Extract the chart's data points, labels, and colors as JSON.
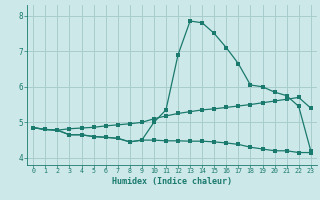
{
  "x": [
    0,
    1,
    2,
    3,
    4,
    5,
    6,
    7,
    8,
    9,
    10,
    11,
    12,
    13,
    14,
    15,
    16,
    17,
    18,
    19,
    20,
    21,
    22,
    23
  ],
  "line_upper": [
    4.85,
    4.8,
    4.78,
    4.65,
    4.65,
    4.6,
    4.58,
    4.55,
    4.45,
    4.5,
    5.0,
    5.35,
    6.9,
    7.85,
    7.8,
    7.5,
    7.1,
    6.65,
    6.05,
    6.0,
    5.85,
    5.75,
    5.45,
    4.2
  ],
  "line_middle": [
    4.85,
    4.8,
    4.78,
    4.82,
    4.84,
    4.86,
    4.9,
    4.93,
    4.96,
    5.0,
    5.1,
    5.18,
    5.25,
    5.3,
    5.35,
    5.38,
    5.42,
    5.46,
    5.5,
    5.55,
    5.6,
    5.65,
    5.7,
    5.4
  ],
  "line_lower": [
    4.85,
    4.8,
    4.78,
    4.65,
    4.65,
    4.6,
    4.58,
    4.55,
    4.45,
    4.5,
    4.5,
    4.48,
    4.48,
    4.47,
    4.47,
    4.45,
    4.42,
    4.38,
    4.3,
    4.25,
    4.2,
    4.2,
    4.15,
    4.15
  ],
  "color": "#1a7a6e",
  "bg_color": "#cde8e8",
  "grid_color": "#a8cdcd",
  "xlabel": "Humidex (Indice chaleur)",
  "ylim": [
    3.8,
    8.3
  ],
  "xlim": [
    -0.5,
    23.5
  ],
  "yticks": [
    4,
    5,
    6,
    7,
    8
  ],
  "xticks": [
    0,
    1,
    2,
    3,
    4,
    5,
    6,
    7,
    8,
    9,
    10,
    11,
    12,
    13,
    14,
    15,
    16,
    17,
    18,
    19,
    20,
    21,
    22,
    23
  ]
}
